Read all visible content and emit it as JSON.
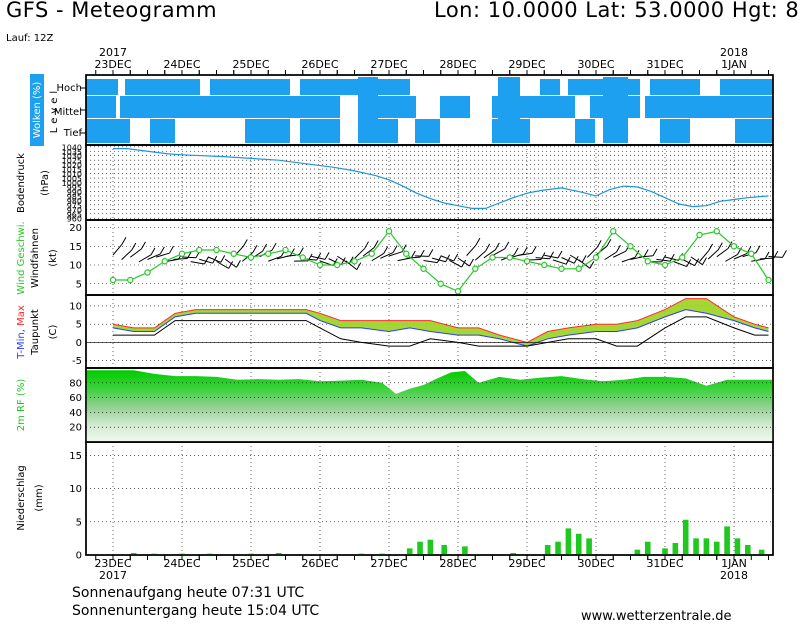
{
  "header": {
    "title": "GFS - Meteogramm",
    "location": "Lon: 10.0000  Lat: 53.0000  Hgt: 8",
    "run": "Lauf: 12Z"
  },
  "footer": {
    "sunrise": "Sonnenaufgang heute 07:31 UTC",
    "sunset": "Sonnenuntergang heute 15:04 UTC",
    "site": "www.wetterzentrale.de"
  },
  "timeline": {
    "days": [
      "23DEC",
      "24DEC",
      "25DEC",
      "26DEC",
      "27DEC",
      "28DEC",
      "29DEC",
      "30DEC",
      "31DEC",
      "1JAN"
    ],
    "years": [
      {
        "label": "2017",
        "day": 0
      },
      {
        "label": "2018",
        "day": 9
      }
    ]
  },
  "colors": {
    "cloud": "#1ea0f0",
    "pressure": "#1e96dc",
    "wind": "#28c828",
    "tmin": "#2a3cff",
    "tmax": "#ff2a2a",
    "precip": "#1ec81e"
  },
  "chart_data": [
    {
      "type": "heatmap",
      "ylabel": "Wolken (%)",
      "ylabel2": "Level",
      "levels": [
        "Hoch",
        "Mittel",
        "Tief"
      ]
    },
    {
      "type": "line",
      "ylabel": "Bodendruck",
      "yunit": "(hPa)",
      "yticks": [
        960,
        965,
        970,
        975,
        980,
        985,
        990,
        995,
        1000,
        1005,
        1010,
        1015,
        1020,
        1025,
        1030,
        1035,
        1040
      ],
      "ylim": [
        958,
        1042
      ],
      "series": [
        {
          "x": [
            0,
            0.2,
            0.4,
            0.6,
            0.8,
            1.0,
            1.3,
            1.6,
            2.0,
            2.4,
            2.8,
            3.2,
            3.5,
            3.8,
            4.0,
            4.2,
            4.4,
            4.6,
            4.8,
            5.0,
            5.2,
            5.4,
            5.6,
            5.8,
            6.0,
            6.2,
            6.5,
            6.8,
            7.0,
            7.2,
            7.4,
            7.6,
            7.8,
            8.0,
            8.2,
            8.4,
            8.6,
            8.8,
            9.0,
            9.2,
            9.5
          ],
          "y": [
            1038,
            1038,
            1036,
            1034,
            1032,
            1031,
            1030,
            1029,
            1027,
            1025,
            1021,
            1017,
            1013,
            1008,
            1003,
            996,
            988,
            982,
            977,
            974,
            971,
            971,
            977,
            983,
            988,
            991,
            994,
            989,
            985,
            992,
            996,
            995,
            990,
            983,
            976,
            973,
            974,
            979,
            981,
            983,
            985
          ]
        }
      ]
    },
    {
      "type": "line",
      "ylabel": "Wind Geschwi.",
      "ylabel2": "Windfahnen",
      "yunit": "(kt)",
      "yticks": [
        5,
        10,
        15,
        20
      ],
      "ylim": [
        2,
        22
      ],
      "series": [
        {
          "name": "Wind Geschwi.",
          "x": [
            0,
            0.25,
            0.5,
            0.75,
            1.0,
            1.25,
            1.5,
            1.75,
            2.0,
            2.25,
            2.5,
            2.75,
            3.0,
            3.25,
            3.5,
            3.75,
            4.0,
            4.25,
            4.5,
            4.75,
            5.0,
            5.25,
            5.5,
            5.75,
            6.0,
            6.25,
            6.5,
            6.75,
            7.0,
            7.25,
            7.5,
            7.75,
            8.0,
            8.25,
            8.5,
            8.75,
            9.0,
            9.25,
            9.5
          ],
          "y": [
            6,
            6,
            8,
            11,
            13,
            14,
            14,
            13,
            12,
            13,
            14,
            12,
            10,
            10,
            11,
            13,
            19,
            13,
            9,
            5,
            3,
            9,
            12,
            12,
            11,
            10,
            9,
            9,
            12,
            19,
            15,
            11,
            10,
            12,
            18,
            19,
            15,
            13,
            6
          ]
        }
      ]
    },
    {
      "type": "area",
      "ylabel": "T-Min, Max",
      "ylabel2": "Taupunkt",
      "yunit": "(C)",
      "yticks": [
        -5,
        0,
        5,
        10
      ],
      "ylim": [
        -7,
        13
      ],
      "series": [
        {
          "name": "T-Min",
          "x": [
            0,
            0.3,
            0.6,
            0.9,
            1.2,
            1.6,
            2.0,
            2.4,
            2.8,
            3.0,
            3.3,
            3.6,
            4.0,
            4.3,
            4.6,
            5.0,
            5.3,
            5.6,
            6.0,
            6.3,
            6.6,
            7.0,
            7.3,
            7.6,
            8.0,
            8.3,
            8.6,
            9.0,
            9.3,
            9.5
          ],
          "y": [
            4,
            3,
            3,
            7,
            8,
            8,
            8,
            8,
            8,
            6,
            4,
            4,
            3,
            4,
            3,
            2,
            2,
            1,
            -1,
            1,
            2,
            3,
            3,
            4,
            7,
            9,
            8,
            6,
            4,
            3
          ]
        },
        {
          "name": "T-Max",
          "x": [
            0,
            0.3,
            0.6,
            0.9,
            1.2,
            1.6,
            2.0,
            2.4,
            2.8,
            3.0,
            3.3,
            3.6,
            4.0,
            4.3,
            4.6,
            5.0,
            5.3,
            5.6,
            6.0,
            6.3,
            6.6,
            7.0,
            7.3,
            7.6,
            8.0,
            8.3,
            8.6,
            9.0,
            9.3,
            9.5
          ],
          "y": [
            5,
            4,
            4,
            8,
            9,
            9,
            9,
            9,
            9,
            8,
            6,
            6,
            6,
            6,
            6,
            4,
            4,
            2,
            0,
            3,
            4,
            5,
            5,
            6,
            9,
            12,
            12,
            7,
            5,
            4
          ]
        },
        {
          "name": "Taupunkt",
          "x": [
            0,
            0.3,
            0.6,
            0.9,
            1.2,
            1.6,
            2.0,
            2.4,
            2.8,
            3.0,
            3.3,
            3.6,
            4.0,
            4.3,
            4.6,
            5.0,
            5.3,
            5.6,
            6.0,
            6.3,
            6.6,
            7.0,
            7.3,
            7.6,
            8.0,
            8.3,
            8.6,
            9.0,
            9.3,
            9.5
          ],
          "y": [
            2,
            2,
            2,
            6,
            6,
            6,
            6,
            6,
            6,
            4,
            1,
            0,
            -1,
            -1,
            1,
            0,
            -1,
            -1,
            -1,
            0,
            1,
            1,
            -1,
            -1,
            4,
            7,
            7,
            4,
            2,
            2
          ]
        }
      ]
    },
    {
      "type": "area",
      "ylabel": "2m RF (%)",
      "yticks": [
        20,
        40,
        60,
        80
      ],
      "ylim": [
        0,
        100
      ],
      "series": [
        {
          "name": "2m RF",
          "x": [
            0,
            0.3,
            0.6,
            0.9,
            1.2,
            1.5,
            1.8,
            2.1,
            2.4,
            2.7,
            3.0,
            3.3,
            3.6,
            3.9,
            4.1,
            4.3,
            4.5,
            4.7,
            4.9,
            5.1,
            5.3,
            5.6,
            5.9,
            6.2,
            6.5,
            6.8,
            7.1,
            7.4,
            7.7,
            8.0,
            8.3,
            8.6,
            8.9,
            9.2,
            9.5
          ],
          "y": [
            97,
            97,
            92,
            89,
            89,
            88,
            84,
            85,
            84,
            85,
            82,
            83,
            84,
            80,
            65,
            72,
            77,
            86,
            94,
            96,
            80,
            88,
            84,
            87,
            89,
            85,
            82,
            84,
            88,
            88,
            86,
            76,
            84,
            84,
            84
          ]
        }
      ]
    },
    {
      "type": "bar",
      "ylabel": "Niederschlag",
      "yunit": "(mm)",
      "yticks": [
        0,
        5,
        10,
        15
      ],
      "ylim": [
        0,
        17
      ],
      "x": [
        0.3,
        0.6,
        1.0,
        1.4,
        2.0,
        2.4,
        3.6,
        3.9,
        4.3,
        4.45,
        4.6,
        4.8,
        5.1,
        5.8,
        6.3,
        6.45,
        6.6,
        6.75,
        6.9,
        7.6,
        7.75,
        8.0,
        8.15,
        8.3,
        8.45,
        8.6,
        8.75,
        8.9,
        9.05,
        9.2,
        9.4
      ],
      "values": [
        0.3,
        0.2,
        0.2,
        0.2,
        0.2,
        0.3,
        0.2,
        0.2,
        1.0,
        2.0,
        2.3,
        1.5,
        1.3,
        0.3,
        1.5,
        2.0,
        4.0,
        3.2,
        2.5,
        0.8,
        2.0,
        1.0,
        1.8,
        5.3,
        2.5,
        2.5,
        2.0,
        4.3,
        2.5,
        1.5,
        0.8
      ]
    }
  ]
}
